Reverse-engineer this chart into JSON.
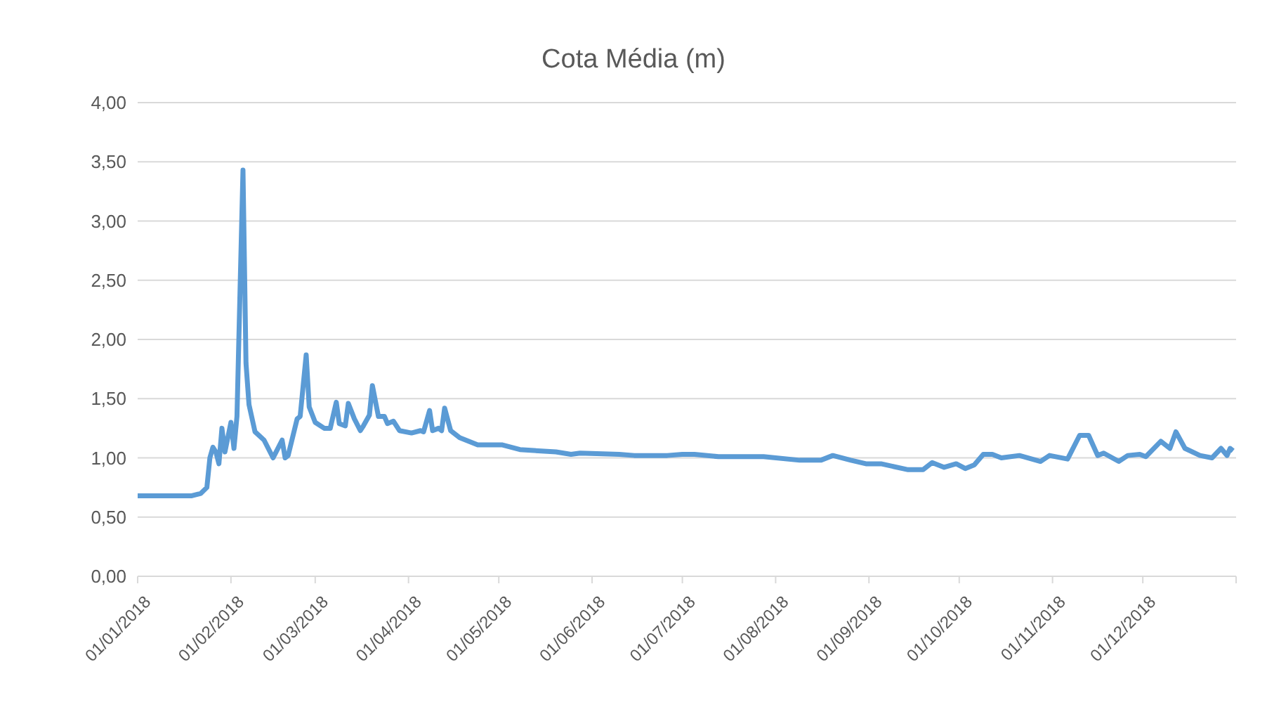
{
  "chart_data": {
    "type": "line",
    "title": "Cota Média (m)",
    "x": [
      "2018-01-01",
      "2018-01-19",
      "2018-01-22",
      "2018-01-24",
      "2018-01-25",
      "2018-01-26",
      "2018-01-27",
      "2018-01-28",
      "2018-01-29",
      "2018-01-30",
      "2018-02-01",
      "2018-02-02",
      "2018-02-03",
      "2018-02-05",
      "2018-02-06",
      "2018-02-07",
      "2018-02-09",
      "2018-02-12",
      "2018-02-15",
      "2018-02-16",
      "2018-02-18",
      "2018-02-19",
      "2018-02-20",
      "2018-02-23",
      "2018-02-24",
      "2018-02-26",
      "2018-02-27",
      "2018-03-01",
      "2018-03-04",
      "2018-03-06",
      "2018-03-08",
      "2018-03-09",
      "2018-03-11",
      "2018-03-12",
      "2018-03-14",
      "2018-03-16",
      "2018-03-17",
      "2018-03-19",
      "2018-03-20",
      "2018-03-22",
      "2018-03-24",
      "2018-03-25",
      "2018-03-27",
      "2018-03-29",
      "2018-04-02",
      "2018-04-05",
      "2018-04-06",
      "2018-04-08",
      "2018-04-09",
      "2018-04-11",
      "2018-04-12",
      "2018-04-13",
      "2018-04-15",
      "2018-04-18",
      "2018-04-24",
      "2018-05-02",
      "2018-05-08",
      "2018-05-20",
      "2018-05-25",
      "2018-05-28",
      "2018-06-10",
      "2018-06-15",
      "2018-06-26",
      "2018-07-01",
      "2018-07-05",
      "2018-07-13",
      "2018-07-28",
      "2018-08-09",
      "2018-08-16",
      "2018-08-20",
      "2018-08-26",
      "2018-08-31",
      "2018-09-05",
      "2018-09-14",
      "2018-09-19",
      "2018-09-22",
      "2018-09-26",
      "2018-09-30",
      "2018-10-03",
      "2018-10-06",
      "2018-10-09",
      "2018-10-12",
      "2018-10-15",
      "2018-10-21",
      "2018-10-28",
      "2018-10-31",
      "2018-11-06",
      "2018-11-10",
      "2018-11-13",
      "2018-11-16",
      "2018-11-18",
      "2018-11-23",
      "2018-11-26",
      "2018-11-30",
      "2018-12-02",
      "2018-12-07",
      "2018-12-10",
      "2018-12-12",
      "2018-12-15",
      "2018-12-20",
      "2018-12-24",
      "2018-12-27",
      "2018-12-29",
      "2018-12-30",
      "2018-12-31"
    ],
    "series": [
      {
        "color": "#5b9bd5",
        "values": [
          0.68,
          0.68,
          0.7,
          0.75,
          1.0,
          1.09,
          1.05,
          0.95,
          1.25,
          1.05,
          1.3,
          1.08,
          1.35,
          3.43,
          1.8,
          1.45,
          1.22,
          1.15,
          1.0,
          1.05,
          1.15,
          1.0,
          1.02,
          1.33,
          1.35,
          1.87,
          1.43,
          1.3,
          1.25,
          1.25,
          1.47,
          1.29,
          1.27,
          1.46,
          1.33,
          1.23,
          1.27,
          1.36,
          1.61,
          1.35,
          1.35,
          1.29,
          1.31,
          1.23,
          1.21,
          1.23,
          1.22,
          1.4,
          1.23,
          1.25,
          1.23,
          1.42,
          1.23,
          1.17,
          1.11,
          1.11,
          1.07,
          1.05,
          1.03,
          1.04,
          1.03,
          1.02,
          1.02,
          1.03,
          1.03,
          1.01,
          1.01,
          0.98,
          0.98,
          1.02,
          0.98,
          0.95,
          0.95,
          0.9,
          0.9,
          0.96,
          0.92,
          0.95,
          0.91,
          0.94,
          1.03,
          1.03,
          1.0,
          1.02,
          0.97,
          1.02,
          0.99,
          1.19,
          1.19,
          1.02,
          1.04,
          0.97,
          1.02,
          1.03,
          1.01,
          1.14,
          1.08,
          1.22,
          1.08,
          1.02,
          1.0,
          1.08,
          1.02,
          1.08,
          1.06
        ]
      }
    ],
    "xlim": [
      "2018-01-01",
      "2019-01-01"
    ],
    "xticks": [
      {
        "value": "2018-01-01",
        "label": "01/01/2018"
      },
      {
        "value": "2018-02-01",
        "label": "01/02/2018"
      },
      {
        "value": "2018-03-01",
        "label": "01/03/2018"
      },
      {
        "value": "2018-04-01",
        "label": "01/04/2018"
      },
      {
        "value": "2018-05-01",
        "label": "01/05/2018"
      },
      {
        "value": "2018-06-01",
        "label": "01/06/2018"
      },
      {
        "value": "2018-07-01",
        "label": "01/07/2018"
      },
      {
        "value": "2018-08-01",
        "label": "01/08/2018"
      },
      {
        "value": "2018-09-01",
        "label": "01/09/2018"
      },
      {
        "value": "2018-10-01",
        "label": "01/10/2018"
      },
      {
        "value": "2018-11-01",
        "label": "01/11/2018"
      },
      {
        "value": "2018-12-01",
        "label": "01/12/2018"
      },
      {
        "value": "2019-01-01",
        "label": null
      }
    ],
    "ylim": [
      0,
      4
    ],
    "yticks": [
      {
        "value": 0,
        "label": "0,00"
      },
      {
        "value": 0.5,
        "label": "0,50"
      },
      {
        "value": 1,
        "label": "1,00"
      },
      {
        "value": 1.5,
        "label": "1,50"
      },
      {
        "value": 2,
        "label": "2,00"
      },
      {
        "value": 2.5,
        "label": "2,50"
      },
      {
        "value": 3,
        "label": "3,00"
      },
      {
        "value": 3.5,
        "label": "3,50"
      },
      {
        "value": 4,
        "label": "4,00"
      }
    ],
    "grid": "y",
    "marker": "none",
    "line_style": "solid"
  }
}
